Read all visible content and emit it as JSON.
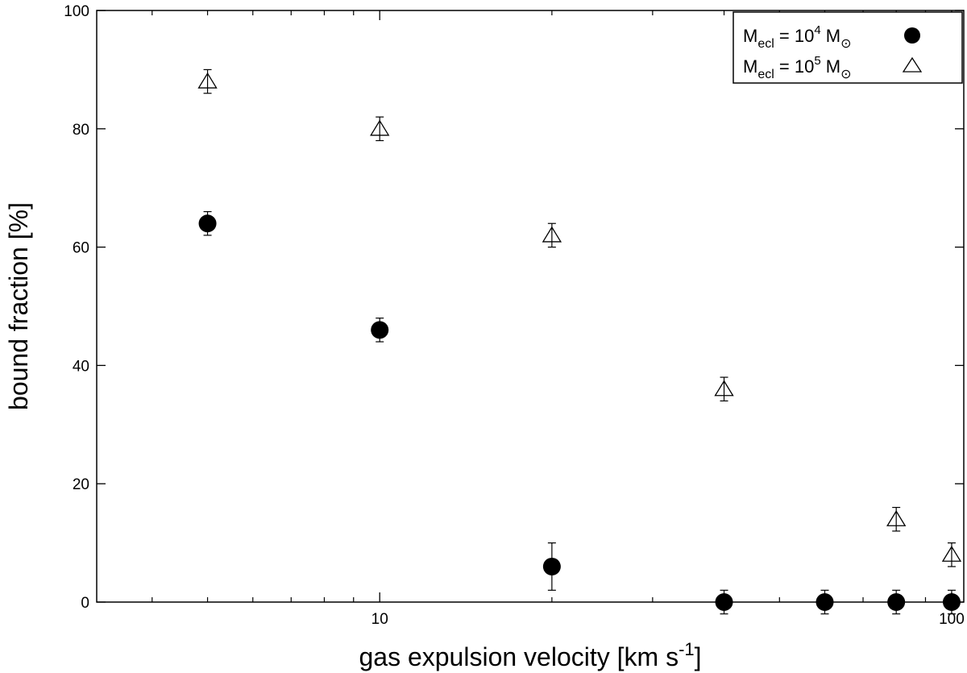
{
  "chart_data": {
    "type": "scatter",
    "title": "",
    "xlabel": "gas expulsion velocity [km s",
    "xlabel_sup": "-1",
    "xlabel_end": "]",
    "ylabel": "bound fraction [%]",
    "xscale": "log",
    "xlim": [
      3.2,
      105
    ],
    "ylim": [
      0,
      100
    ],
    "xticks_major": [
      {
        "value": 10,
        "label": "10"
      },
      {
        "value": 100,
        "label": "100"
      }
    ],
    "yticks": [
      {
        "value": 0,
        "label": "0"
      },
      {
        "value": 20,
        "label": "20"
      },
      {
        "value": 40,
        "label": "40"
      },
      {
        "value": 60,
        "label": "60"
      },
      {
        "value": 80,
        "label": "80"
      },
      {
        "value": 100,
        "label": "100"
      }
    ],
    "grid": false,
    "legend_position": "top-right",
    "legend": [
      {
        "prefix": "M",
        "sub": "ecl",
        "mid": " = 10",
        "sup": "4",
        "suffix": " M",
        "symbol": "⊙",
        "marker": "filled-circle"
      },
      {
        "prefix": "M",
        "sub": "ecl",
        "mid": " = 10",
        "sup": "5",
        "suffix": " M",
        "symbol": "⊙",
        "marker": "open-triangle"
      }
    ],
    "series": [
      {
        "marker": "filled-circle",
        "color": "#000000",
        "points": [
          {
            "x": 5,
            "y": 64,
            "err": 2
          },
          {
            "x": 10,
            "y": 46,
            "err": 2
          },
          {
            "x": 20,
            "y": 6,
            "err": 4
          },
          {
            "x": 40,
            "y": 0,
            "err": 2
          },
          {
            "x": 60,
            "y": 0,
            "err": 2
          },
          {
            "x": 80,
            "y": 0,
            "err": 2
          },
          {
            "x": 100,
            "y": 0,
            "err": 2
          }
        ]
      },
      {
        "marker": "open-triangle",
        "color": "#000000",
        "points": [
          {
            "x": 5,
            "y": 88,
            "err": 2
          },
          {
            "x": 10,
            "y": 80,
            "err": 2
          },
          {
            "x": 20,
            "y": 62,
            "err": 2
          },
          {
            "x": 40,
            "y": 36,
            "err": 2
          },
          {
            "x": 80,
            "y": 14,
            "err": 2
          },
          {
            "x": 100,
            "y": 8,
            "err": 2
          }
        ]
      }
    ]
  }
}
